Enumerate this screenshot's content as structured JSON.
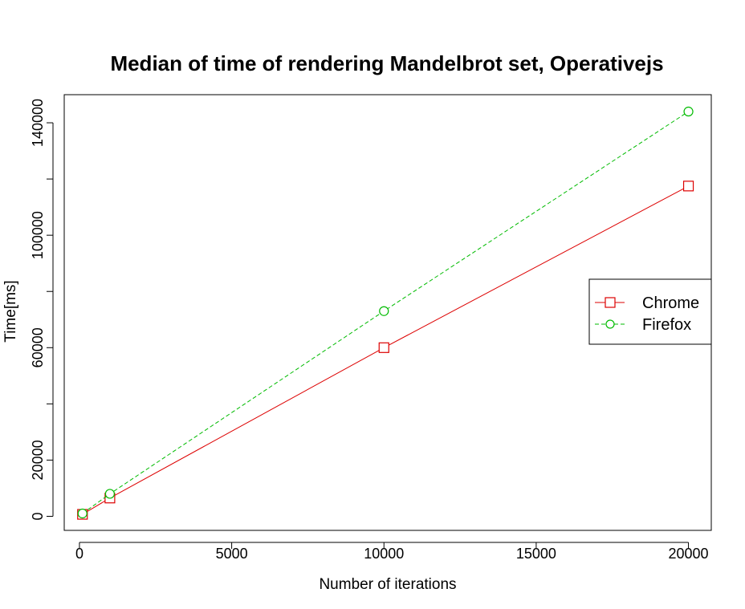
{
  "chart_data": {
    "type": "line",
    "title": "Median of time of rendering Mandelbrot set, Operativejs",
    "xlabel": "Number of iterations",
    "ylabel": "Time[ms]",
    "xlim": [
      -500,
      20750
    ],
    "ylim": [
      -5000,
      150000
    ],
    "xticks": [
      0,
      5000,
      10000,
      15000,
      20000
    ],
    "xtick_labels": [
      "0",
      "5000",
      "10000",
      "15000",
      "20000"
    ],
    "yticks": [
      0,
      20000,
      40000,
      60000,
      80000,
      100000,
      120000,
      140000
    ],
    "ytick_labels": [
      "0",
      "20000",
      "",
      "60000",
      "",
      "100000",
      "",
      "140000"
    ],
    "legend_position": "right",
    "grid": false,
    "series": [
      {
        "name": "Chrome",
        "color": "#dd0000",
        "line_style": "solid",
        "marker": "square",
        "x": [
          100,
          1000,
          10000,
          20000
        ],
        "y": [
          700,
          6500,
          60000,
          117500
        ]
      },
      {
        "name": "Firefox",
        "color": "#00bb00",
        "line_style": "dashed",
        "marker": "circle",
        "x": [
          100,
          1000,
          10000,
          20000
        ],
        "y": [
          1000,
          8000,
          73000,
          144000
        ]
      }
    ]
  }
}
